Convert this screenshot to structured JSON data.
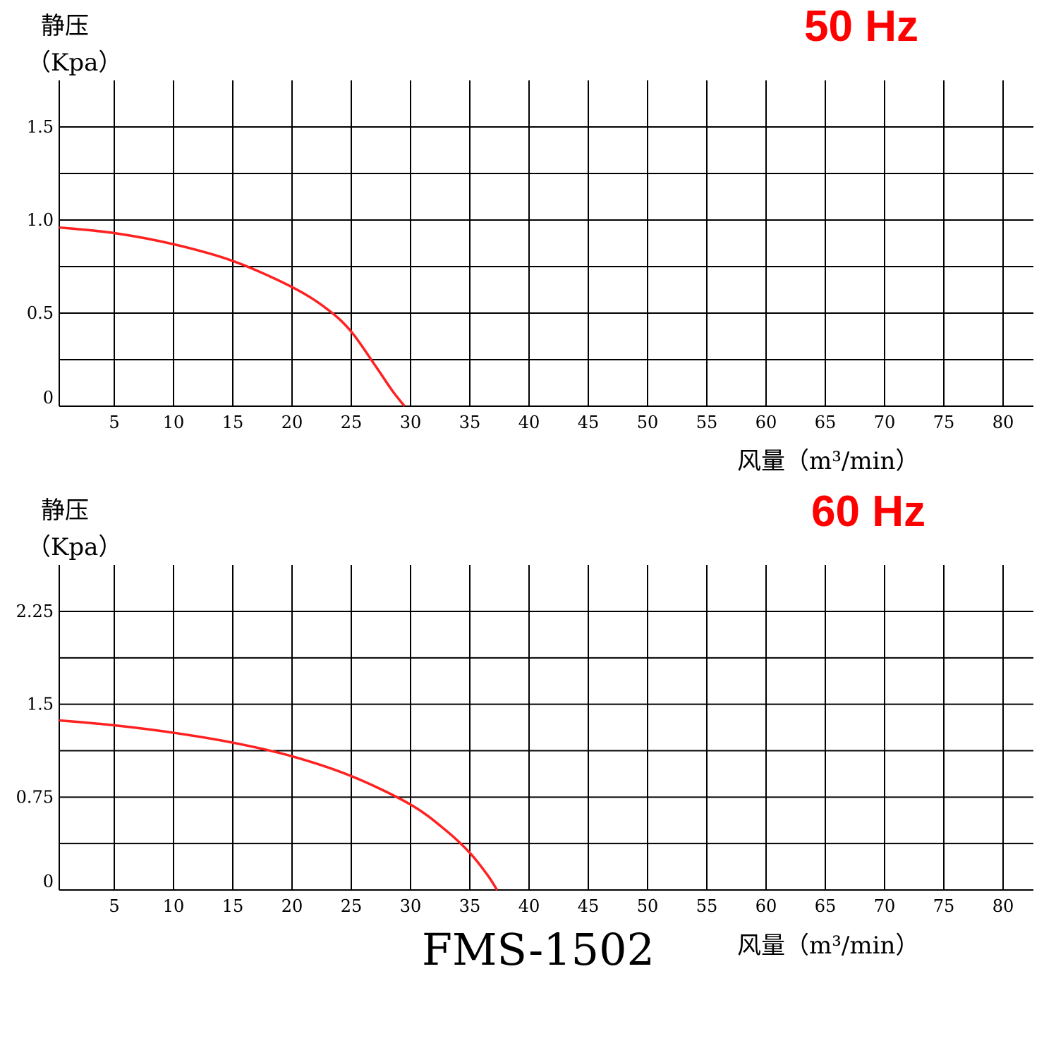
{
  "chart_data": [
    {
      "type": "line",
      "frequency_label": "50 Hz",
      "y_label_line1": "静压",
      "y_label_line2": "（Kpa）",
      "x_label": "风量（m³/min）",
      "x_ticks": [
        5,
        10,
        15,
        20,
        25,
        30,
        35,
        40,
        45,
        50,
        55,
        60,
        65,
        70,
        75,
        80
      ],
      "x_tick_labels": [
        "5",
        "10",
        "15",
        "20",
        "25",
        "30",
        "35",
        "40",
        "45",
        "50",
        "55",
        "60",
        "65",
        "70",
        "75",
        "80"
      ],
      "y_ticks": [
        0,
        0.5,
        1.0,
        1.5
      ],
      "y_tick_labels": [
        "0",
        "0.5",
        "1.0",
        "1.5"
      ],
      "xlim": [
        0,
        82
      ],
      "ylim": [
        0,
        1.75
      ],
      "grid": true,
      "series_color": "#ff2020",
      "series": [
        {
          "name": "",
          "x": [
            0,
            5,
            10,
            15,
            20,
            23,
            25,
            27,
            28.5,
            29.5
          ],
          "y": [
            0.96,
            0.93,
            0.87,
            0.78,
            0.64,
            0.52,
            0.4,
            0.22,
            0.08,
            0.0
          ]
        }
      ]
    },
    {
      "type": "line",
      "frequency_label": "60 Hz",
      "y_label_line1": "静压",
      "y_label_line2": "（Kpa）",
      "x_label": "风量（m³/min）",
      "x_ticks": [
        5,
        10,
        15,
        20,
        25,
        30,
        35,
        40,
        45,
        50,
        55,
        60,
        65,
        70,
        75,
        80
      ],
      "x_tick_labels": [
        "5",
        "10",
        "15",
        "20",
        "25",
        "30",
        "35",
        "40",
        "45",
        "50",
        "55",
        "60",
        "65",
        "70",
        "75",
        "80"
      ],
      "y_ticks": [
        0,
        0.75,
        1.5,
        2.25
      ],
      "y_tick_labels": [
        "0",
        "0.75",
        "1.5",
        "2.25"
      ],
      "xlim": [
        0,
        82
      ],
      "ylim": [
        0,
        2.6
      ],
      "grid": true,
      "series_color": "#ff2020",
      "series": [
        {
          "name": "",
          "x": [
            0,
            5,
            10,
            15,
            20,
            25,
            30,
            33,
            35,
            36.5,
            37.3
          ],
          "y": [
            1.37,
            1.33,
            1.27,
            1.19,
            1.08,
            0.92,
            0.69,
            0.48,
            0.3,
            0.12,
            0.0
          ]
        }
      ]
    }
  ],
  "model_label": "FMS-1502"
}
